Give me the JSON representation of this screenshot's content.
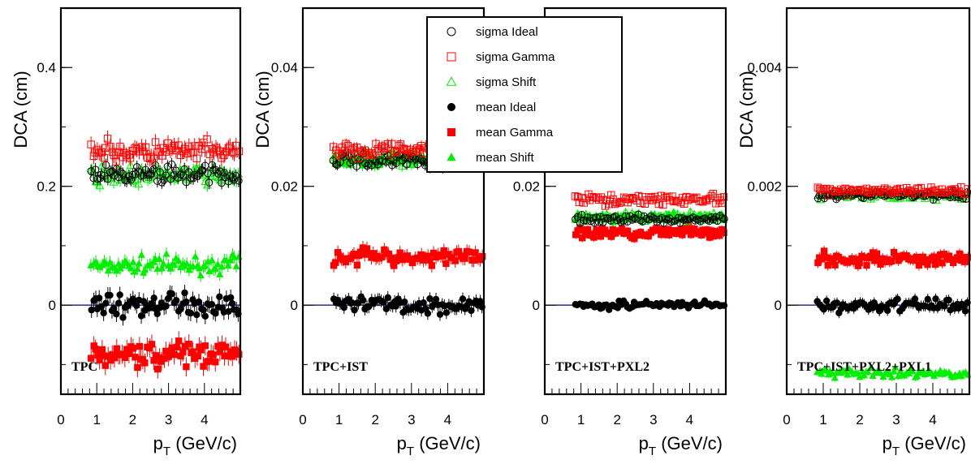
{
  "chart_data": {
    "type": "scatter",
    "xlabel": "p",
    "xlabel_sub": "T",
    "xlabel_unit": " (GeV/c)",
    "ylabel": "DCA (cm)",
    "xlim": [
      0,
      5
    ],
    "x_ticks": [
      "0",
      "1",
      "2",
      "3",
      "4"
    ],
    "legend": {
      "placement": "top-center",
      "entries": [
        {
          "label": "sigma Ideal",
          "color": "#000000",
          "marker": "circle-open"
        },
        {
          "label": "sigma Gamma",
          "color": "#ff0000",
          "marker": "square-open"
        },
        {
          "label": "sigma Shift",
          "color": "#00ee00",
          "marker": "triangle-open"
        },
        {
          "label": "mean Ideal",
          "color": "#000000",
          "marker": "circle-filled"
        },
        {
          "label": "mean Gamma",
          "color": "#ff0000",
          "marker": "square-filled"
        },
        {
          "label": "mean Shift",
          "color": "#00ee00",
          "marker": "triangle-filled"
        }
      ]
    },
    "panels": [
      {
        "label": "TPC",
        "ylim": [
          -0.15,
          0.5
        ],
        "y_ticks": [
          {
            "v": 0,
            "t": "0"
          },
          {
            "v": 0.2,
            "t": "0.2"
          },
          {
            "v": 0.4,
            "t": "0.4"
          }
        ],
        "series": [
          {
            "key": "sigma Ideal",
            "mean": 0.22,
            "scatter": 0.012
          },
          {
            "key": "sigma Gamma",
            "mean": 0.258,
            "scatter": 0.015
          },
          {
            "key": "sigma Shift",
            "mean": 0.218,
            "scatter": 0.012
          },
          {
            "key": "mean Ideal",
            "mean": 0.0,
            "scatter": 0.015
          },
          {
            "key": "mean Gamma",
            "mean": -0.082,
            "scatter": 0.018
          },
          {
            "key": "mean Shift",
            "mean": 0.068,
            "scatter": 0.012
          }
        ]
      },
      {
        "label": "TPC+IST",
        "ylim": [
          -0.015,
          0.05
        ],
        "y_ticks": [
          {
            "v": 0,
            "t": "0"
          },
          {
            "v": 0.02,
            "t": "0.02"
          },
          {
            "v": 0.04,
            "t": "0.04"
          }
        ],
        "series": [
          {
            "key": "sigma Ideal",
            "mean": 0.0245,
            "scatter": 0.001
          },
          {
            "key": "sigma Gamma",
            "mean": 0.0262,
            "scatter": 0.001
          },
          {
            "key": "sigma Shift",
            "mean": 0.0245,
            "scatter": 0.001
          },
          {
            "key": "mean Ideal",
            "mean": 0.0,
            "scatter": 0.0012
          },
          {
            "key": "mean Gamma",
            "mean": 0.0082,
            "scatter": 0.0013
          },
          {
            "key": "mean Shift",
            "mean": 0.0245,
            "scatter": 0.001
          }
        ]
      },
      {
        "label": "TPC+IST+PXL2",
        "ylim": [
          -0.015,
          0.05
        ],
        "y_ticks": [
          {
            "v": 0,
            "t": "0"
          },
          {
            "v": 0.02,
            "t": "0.02"
          }
        ],
        "series": [
          {
            "key": "sigma Ideal",
            "mean": 0.0145,
            "scatter": 0.0006
          },
          {
            "key": "sigma Gamma",
            "mean": 0.0178,
            "scatter": 0.0007
          },
          {
            "key": "sigma Shift",
            "mean": 0.0148,
            "scatter": 0.0006
          },
          {
            "key": "mean Ideal",
            "mean": 0.0,
            "scatter": 0.0006
          },
          {
            "key": "mean Gamma",
            "mean": 0.0122,
            "scatter": 0.0008
          },
          {
            "key": "mean Shift",
            "mean": 0.0148,
            "scatter": 0.0006
          }
        ]
      },
      {
        "label": "TPC+IST+PXL2+PXL1",
        "ylim": [
          -0.0015,
          0.005
        ],
        "y_ticks": [
          {
            "v": 0,
            "t": "0"
          },
          {
            "v": 0.002,
            "t": "0.002"
          },
          {
            "v": 0.004,
            "t": "0.004"
          }
        ],
        "series": [
          {
            "key": "sigma Ideal",
            "mean": 0.00185,
            "scatter": 6e-05
          },
          {
            "key": "sigma Gamma",
            "mean": 0.00193,
            "scatter": 6e-05
          },
          {
            "key": "sigma Shift",
            "mean": 0.00185,
            "scatter": 6e-05
          },
          {
            "key": "mean Ideal",
            "mean": 0.0,
            "scatter": 0.0001
          },
          {
            "key": "mean Gamma",
            "mean": 0.00078,
            "scatter": 0.0001
          },
          {
            "key": "mean Shift",
            "mean": -0.00115,
            "scatter": 7e-05
          }
        ]
      }
    ]
  }
}
